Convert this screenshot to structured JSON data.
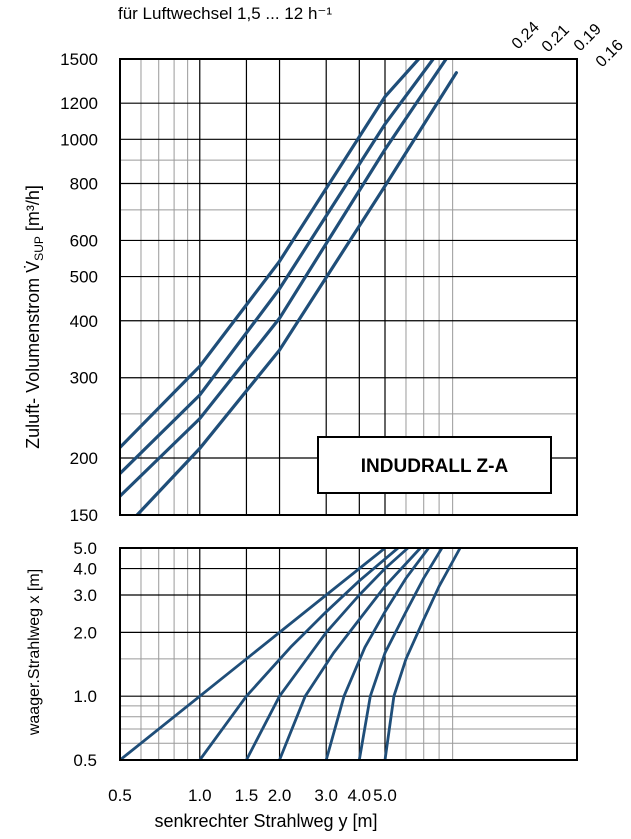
{
  "header_note": "für Luftwechsel 1,5 ... 12 h⁻¹",
  "product_label": "INDUDRALL Z-A",
  "colors": {
    "line": "#1f4e79",
    "grid_major": "#000000",
    "grid_minor": "#9a9a9a"
  },
  "chart_data": [
    {
      "type": "line",
      "scale": "log-log",
      "ylabel": "Zuluft- Volumenstrom V̇SUP  [m³/h]",
      "x_range": [
        0.5,
        8
      ],
      "ylim": [
        150,
        1500
      ],
      "y_ticks": [
        150,
        200,
        300,
        400,
        500,
        600,
        800,
        1000,
        1200,
        1500
      ],
      "y_tick_labels": [
        "150",
        "200",
        "300",
        "400",
        "500",
        "600",
        "800",
        "1000",
        "1200",
        "1500"
      ],
      "grid": true,
      "series": [
        {
          "name": "0.24",
          "points": [
            [
              0.5,
              211
            ],
            [
              1.0,
              318
            ],
            [
              2.0,
              540
            ],
            [
              5.0,
              1240
            ],
            [
              6.7,
              1500
            ]
          ]
        },
        {
          "name": "0.21",
          "points": [
            [
              0.5,
              185
            ],
            [
              1.0,
              275
            ],
            [
              2.0,
              470
            ],
            [
              5.0,
              1080
            ],
            [
              7.6,
              1500
            ]
          ]
        },
        {
          "name": "0.19",
          "points": [
            [
              0.5,
              165
            ],
            [
              1.0,
              244
            ],
            [
              2.0,
              405
            ],
            [
              5.0,
              950
            ],
            [
              8.5,
              1500
            ]
          ]
        },
        {
          "name": "0.16",
          "points": [
            [
              0.58,
              150
            ],
            [
              1.0,
              210
            ],
            [
              2.0,
              345
            ],
            [
              5.0,
              790
            ],
            [
              9.3,
              1400
            ]
          ]
        }
      ]
    },
    {
      "type": "line",
      "scale": "log-log",
      "xlabel": "senkrechter Strahlweg y [m]",
      "ylabel": "waager.Strahlweg x [m]",
      "x_ticks": [
        0.5,
        1.0,
        1.5,
        2.0,
        3.0,
        4.0,
        5.0
      ],
      "x_tick_labels": [
        "0.5",
        "1.0",
        "1.5",
        "2.0",
        "3.0",
        "4.0",
        "5.0"
      ],
      "y_ticks": [
        0.5,
        1.0,
        2.0,
        3.0,
        4.0,
        5.0
      ],
      "y_tick_labels": [
        "0.5",
        "1.0",
        "2.0",
        "3.0",
        "4.0",
        "5.0"
      ],
      "ylim": [
        0.5,
        5.0
      ],
      "grid": true,
      "series": [
        {
          "points": [
            [
              0.5,
              0.5
            ],
            [
              1.0,
              1.0
            ],
            [
              2.0,
              2.0
            ],
            [
              3.0,
              3.0
            ],
            [
              5.0,
              5.0
            ]
          ]
        },
        {
          "points": [
            [
              1.0,
              0.5
            ],
            [
              1.5,
              1.0
            ],
            [
              2.2,
              1.7
            ],
            [
              3.0,
              2.5
            ],
            [
              4.0,
              3.5
            ],
            [
              5.6,
              5.0
            ]
          ]
        },
        {
          "points": [
            [
              1.5,
              0.5
            ],
            [
              2.0,
              1.0
            ],
            [
              3.0,
              2.0
            ],
            [
              4.0,
              3.0
            ],
            [
              5.0,
              4.0
            ],
            [
              6.1,
              5.0
            ]
          ]
        },
        {
          "points": [
            [
              2.0,
              0.5
            ],
            [
              2.5,
              1.0
            ],
            [
              3.2,
              1.6
            ],
            [
              4.0,
              2.3
            ],
            [
              5.0,
              3.3
            ],
            [
              6.8,
              5.0
            ]
          ]
        },
        {
          "points": [
            [
              3.0,
              0.5
            ],
            [
              3.5,
              1.0
            ],
            [
              4.2,
              1.7
            ],
            [
              5.0,
              2.5
            ],
            [
              6.0,
              3.6
            ],
            [
              7.3,
              5.0
            ]
          ]
        },
        {
          "points": [
            [
              4.0,
              0.5
            ],
            [
              4.4,
              1.0
            ],
            [
              5.0,
              1.6
            ],
            [
              6.0,
              2.5
            ],
            [
              7.0,
              3.6
            ],
            [
              8.2,
              5.0
            ]
          ]
        },
        {
          "points": [
            [
              5.0,
              0.5
            ],
            [
              5.4,
              1.0
            ],
            [
              6.0,
              1.5
            ],
            [
              7.0,
              2.3
            ],
            [
              8.0,
              3.3
            ],
            [
              9.6,
              5.0
            ]
          ]
        }
      ]
    }
  ]
}
